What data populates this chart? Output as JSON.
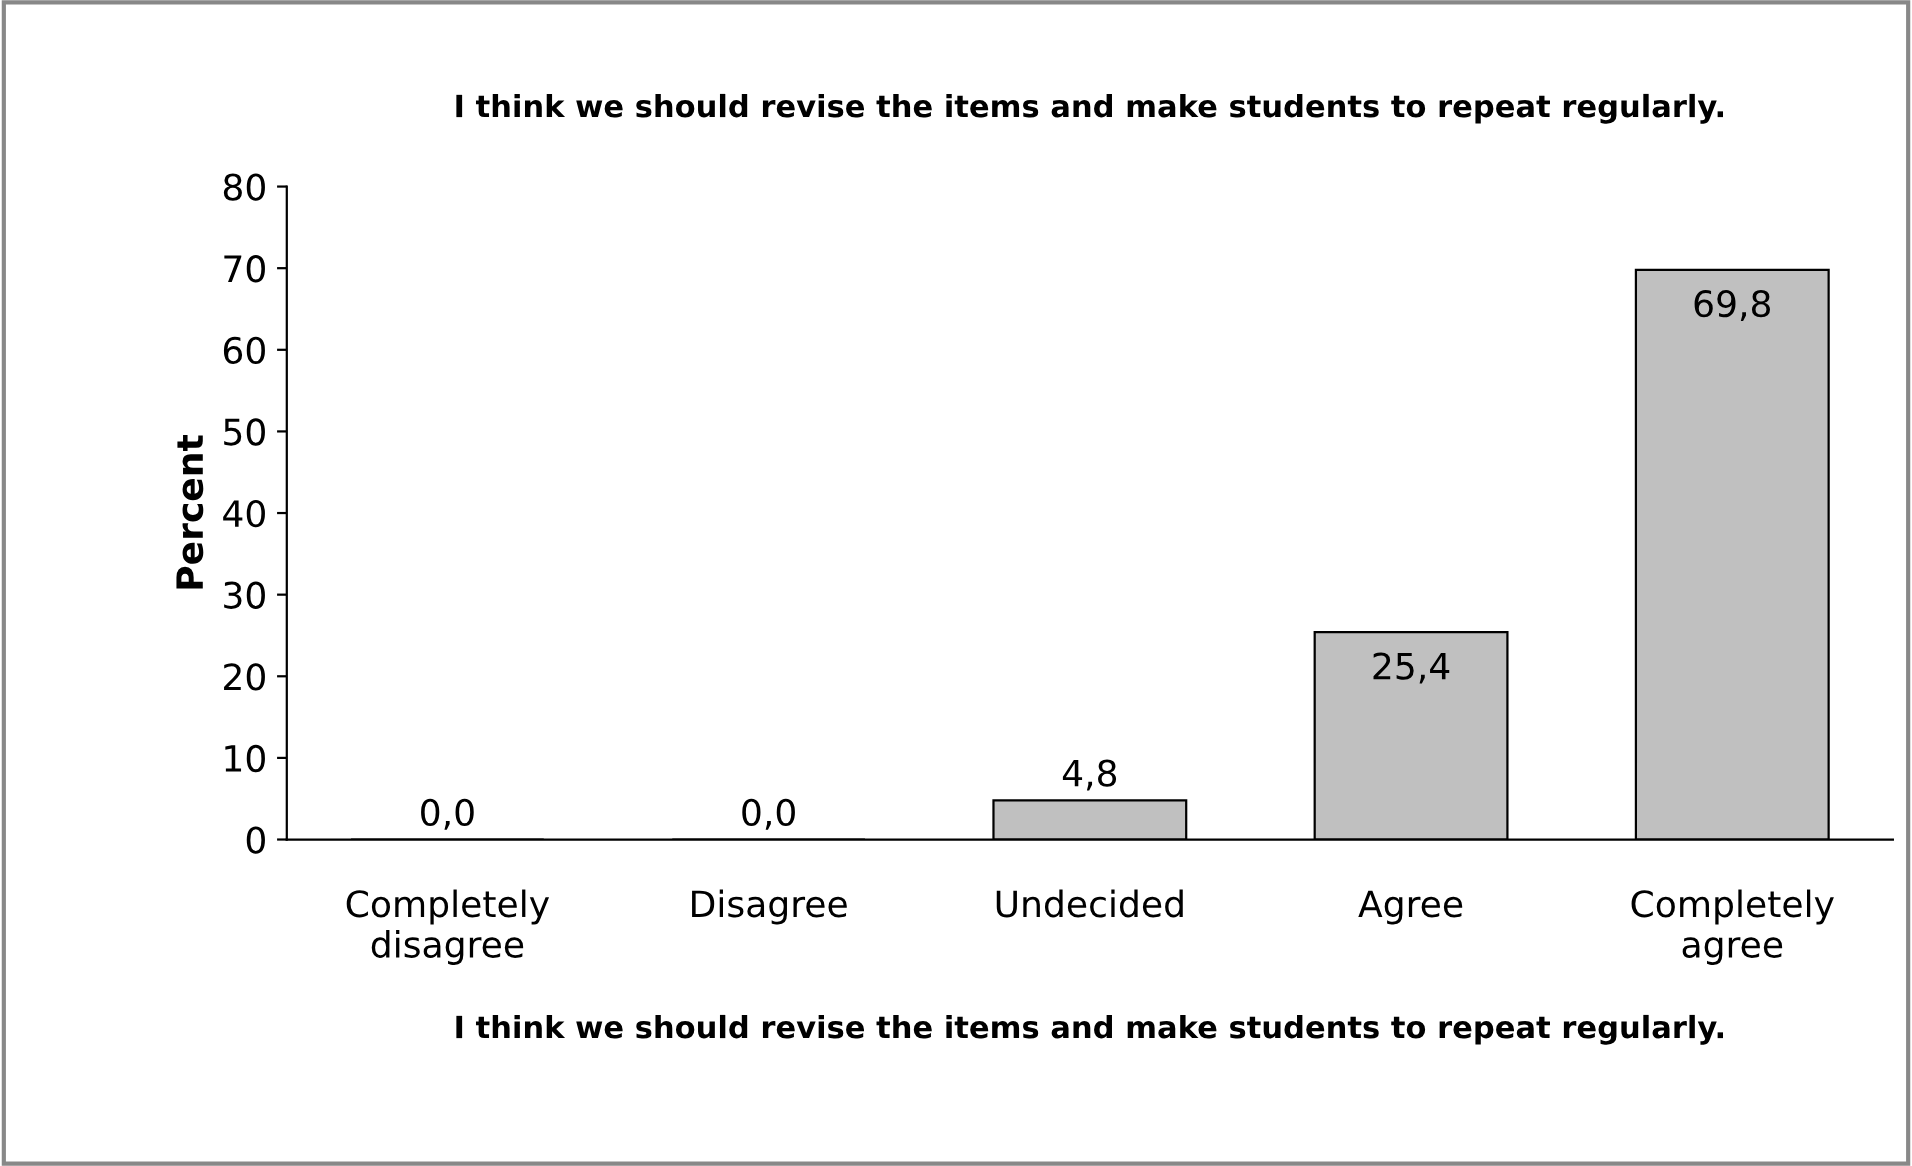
{
  "chart_data": {
    "type": "bar",
    "title": "I think we should revise the items and make students to repeat regularly.",
    "xlabel": "I think we should revise the items and make students to repeat regularly.",
    "ylabel": "Percent",
    "categories": [
      "Completely\ndisagree",
      "Disagree",
      "Undecided",
      "Agree",
      "Completely\nagree"
    ],
    "values": [
      0.0,
      0.0,
      4.8,
      25.4,
      69.8
    ],
    "value_labels": [
      "0,0",
      "0,0",
      "4,8",
      "25,4",
      "69,8"
    ],
    "color": "#c0c0c0",
    "ylim": [
      0,
      80
    ],
    "yticks": [
      0,
      10,
      20,
      30,
      40,
      50,
      60,
      70,
      80
    ],
    "grid": false
  }
}
